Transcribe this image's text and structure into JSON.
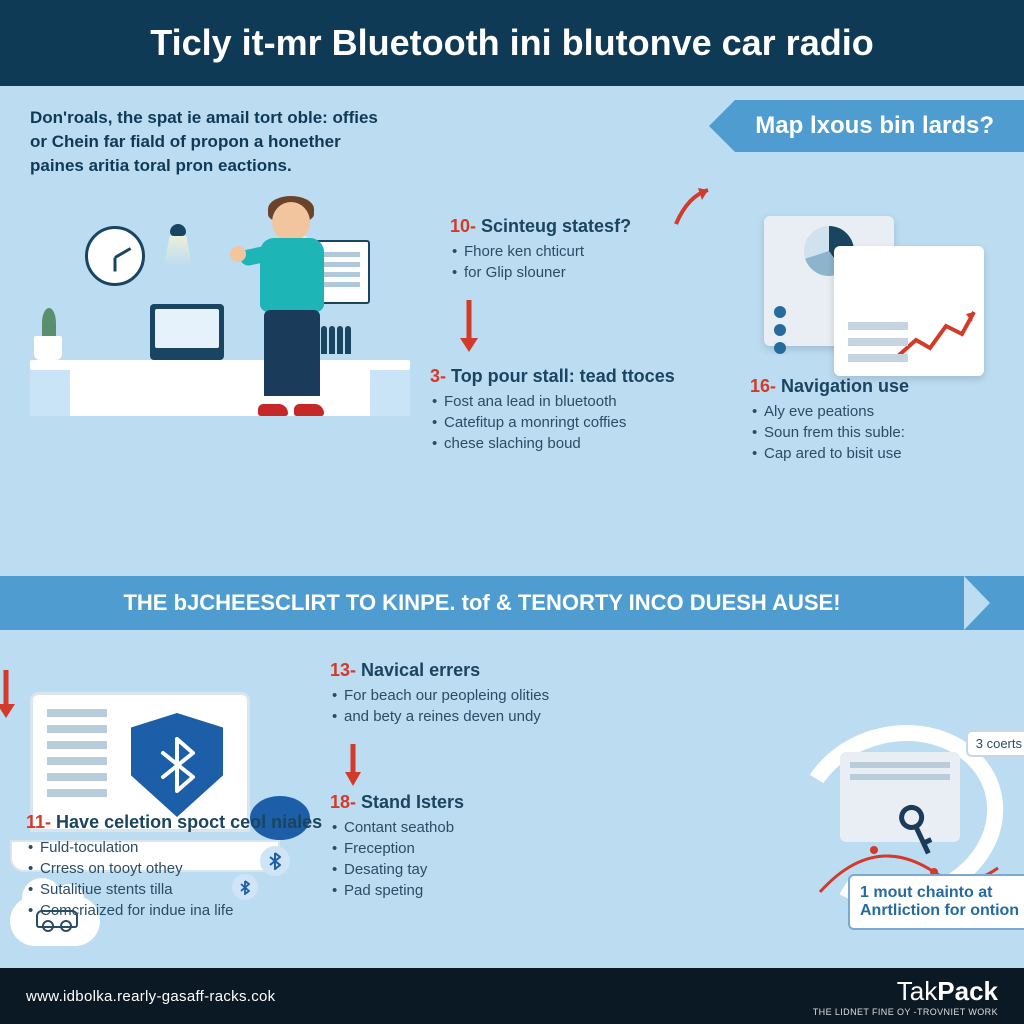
{
  "colors": {
    "header_bg": "#0f3a56",
    "main_bg": "#bcdcf2",
    "ribbon": "#4f9cd0",
    "accent_red": "#d23a2a",
    "text_dark": "#1a4560",
    "footer_bg": "#0b1924",
    "shield": "#1c5fa8"
  },
  "header": {
    "title": "Ticly it-mr Bluetooth ini blutonve car radio"
  },
  "intro": {
    "line1": "Don'roals, the spat ie amail tort oble: offies",
    "line2": "or Chein far fiald of propon a honether",
    "line3": "paines aritia toral pron eactions."
  },
  "ribbons": {
    "top": "Map lxous bin lards?",
    "mid": "THE bJCHEESCLIRT TO KINPE. tof & TENORTY INCO DUESH AUSE!"
  },
  "blocks": {
    "b10": {
      "num": "10-",
      "title": "Scinteug statesf?",
      "items": [
        "Fhore ken chticurt",
        "for Glip slouner"
      ]
    },
    "b3": {
      "num": "3-",
      "title": "Top pour stall: tead ttoces",
      "items": [
        "Fost ana lead in bluetooth",
        "Catefitup a monringt coffies",
        "chese slaching boud"
      ]
    },
    "b16": {
      "num": "16-",
      "title": "Navigation use",
      "items": [
        "Aly eve peations",
        "Soun frem this suble:",
        "Cap ared to bisit use"
      ]
    },
    "b13": {
      "num": "13-",
      "title": "Navical errers",
      "items": [
        "For beach our peopleing olities",
        "and bety a reines deven undy"
      ]
    },
    "b18": {
      "num": "18-",
      "title": "Stand Isters",
      "items": [
        "Contant seathob",
        "Freception",
        "Desating tay",
        "Pad speting"
      ]
    },
    "b11": {
      "num": "11-",
      "title": "Have celetion spoct ceol niales",
      "items": [
        "Fuld-toculation",
        "Crress on tooyt othey",
        "Sutalitiue stents tilla",
        "Comcriaized for indue ina life"
      ]
    }
  },
  "callout": {
    "badge": "3 coerts",
    "box_l1": "1 mout chainto at",
    "box_l2": "Anrtliction for ontion"
  },
  "footer": {
    "url": "www.idbolka.rearly-gasaff-racks.cok",
    "brand_a": "Tak",
    "brand_b": "Pack",
    "tagline": "THE LIDNET FINE OY -TROVNIET WORK"
  }
}
